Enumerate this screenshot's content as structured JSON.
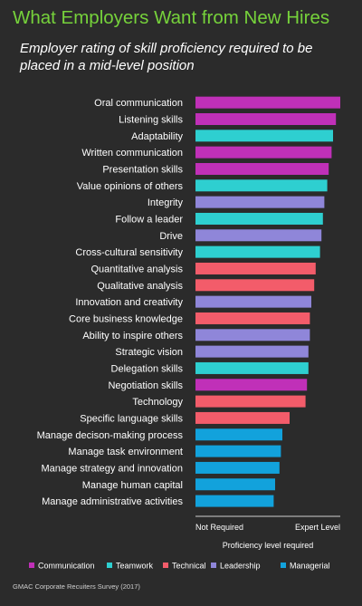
{
  "chart_data": {
    "type": "bar",
    "orientation": "horizontal",
    "title": "What Employers Want from New Hires",
    "subtitle": "Employer rating of skill proficiency required to be placed in a mid-level position",
    "xlabel": "Proficiency level required",
    "x_tick_labels": [
      "Not Required",
      "Expert Level"
    ],
    "xlim": [
      0,
      100
    ],
    "grid": false,
    "legend_position": "bottom",
    "categories": [
      "Oral communication",
      "Listening skills",
      "Adaptability",
      "Written communication",
      "Presentation skills",
      "Value opinions of others",
      "Integrity",
      "Follow a leader",
      "Drive",
      "Cross-cultural sensitivity",
      "Quantitative analysis",
      "Qualitative analysis",
      "Innovation and creativity",
      "Core business knowledge",
      "Ability to inspire others",
      "Strategic vision",
      "Delegation skills",
      "Negotiation skills",
      "Technology",
      "Specific language skills",
      "Manage decison-making process",
      "Manage task environment",
      "Manage strategy and innovation",
      "Manage human capital",
      "Manage administrative activities"
    ],
    "values": [
      100,
      97,
      95,
      94,
      92,
      91,
      89,
      88,
      87,
      86,
      83,
      82,
      80,
      79,
      79,
      78,
      78,
      77,
      76,
      65,
      60,
      59,
      58,
      55,
      54
    ],
    "groups": [
      "Communication",
      "Communication",
      "Teamwork",
      "Communication",
      "Communication",
      "Teamwork",
      "Leadership",
      "Teamwork",
      "Leadership",
      "Teamwork",
      "Technical",
      "Technical",
      "Leadership",
      "Technical",
      "Leadership",
      "Leadership",
      "Teamwork",
      "Communication",
      "Technical",
      "Technical",
      "Managerial",
      "Managerial",
      "Managerial",
      "Managerial",
      "Managerial"
    ],
    "legend": [
      {
        "name": "Communication",
        "color": "#c030b8"
      },
      {
        "name": "Teamwork",
        "color": "#2ecfd0"
      },
      {
        "name": "Technical",
        "color": "#f35c6a"
      },
      {
        "name": "Leadership",
        "color": "#8f86d9"
      },
      {
        "name": "Managerial",
        "color": "#12a2dc"
      }
    ]
  },
  "source": "GMAC Corporate Recuiters Survey (2017)"
}
